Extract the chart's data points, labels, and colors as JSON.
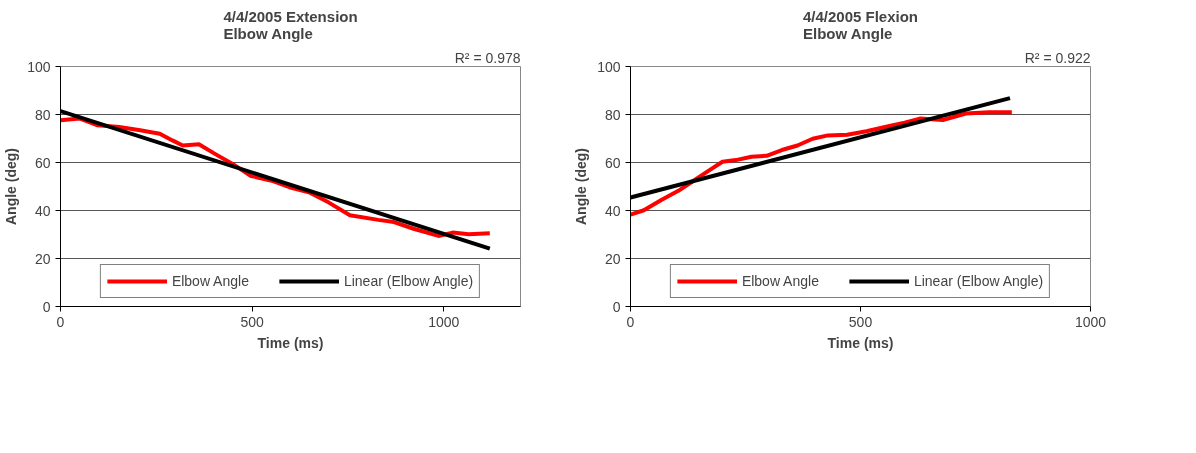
{
  "chart_data": [
    {
      "type": "line",
      "title": "4/4/2005 Extension\nElbow Angle",
      "xlabel": "Time (ms)",
      "ylabel": "Angle (deg)",
      "annotations": [
        "R² = 0.978"
      ],
      "xlim": [
        0,
        1200
      ],
      "ylim": [
        0,
        100
      ],
      "xticks": [
        0,
        500,
        1000
      ],
      "yticks": [
        0,
        20,
        40,
        60,
        80,
        100
      ],
      "grid": "y",
      "legend": "bottom",
      "marker": "none",
      "line_style": "solid",
      "series": [
        {
          "name": "Elbow Angle",
          "color": "#ff0000",
          "x": [
            0,
            51,
            97,
            153,
            208,
            259,
            292,
            319,
            361,
            403,
            449,
            495,
            551,
            597,
            648,
            699,
            755,
            829,
            870,
            921,
            986,
            1023,
            1065,
            1120
          ],
          "values": [
            77.6,
            78.3,
            75.5,
            74.8,
            73.4,
            72,
            69.2,
            67.1,
            67.6,
            63.6,
            59.4,
            54.5,
            52.4,
            49.7,
            47.6,
            43.4,
            38,
            36.1,
            35.2,
            32.4,
            29.4,
            30.8,
            30.1,
            30.5
          ]
        },
        {
          "name": "Linear (Elbow Angle)",
          "color": "#000000",
          "x": [
            0,
            1120
          ],
          "values": [
            81.4,
            24.1
          ]
        }
      ]
    },
    {
      "type": "line",
      "title": "4/4/2005 Flexion\nElbow Angle",
      "xlabel": "Time (ms)",
      "ylabel": "Angle (deg)",
      "annotations": [
        "R² = 0.922"
      ],
      "xlim": [
        0,
        1000
      ],
      "ylim": [
        0,
        100
      ],
      "xticks": [
        0,
        500,
        1000
      ],
      "yticks": [
        0,
        20,
        40,
        60,
        80,
        100
      ],
      "grid": "y",
      "legend": "bottom",
      "marker": "none",
      "line_style": "solid",
      "series": [
        {
          "name": "Elbow Angle",
          "color": "#ff0000",
          "x": [
            0,
            29,
            67,
            104,
            138,
            171,
            200,
            229,
            263,
            296,
            329,
            363,
            396,
            429,
            471,
            513,
            563,
            596,
            629,
            679,
            729,
            779,
            829
          ],
          "values": [
            38.3,
            40.1,
            44.4,
            48.2,
            52.5,
            56.7,
            60.3,
            61,
            62.4,
            62.8,
            65.2,
            67.1,
            69.9,
            71.3,
            71.6,
            73,
            75.2,
            76.6,
            78.3,
            77.7,
            80.4,
            80.9,
            80.9
          ]
        },
        {
          "name": "Linear (Elbow Angle)",
          "color": "#000000",
          "x": [
            0,
            825
          ],
          "values": [
            45.4,
            86.8
          ]
        }
      ]
    }
  ]
}
